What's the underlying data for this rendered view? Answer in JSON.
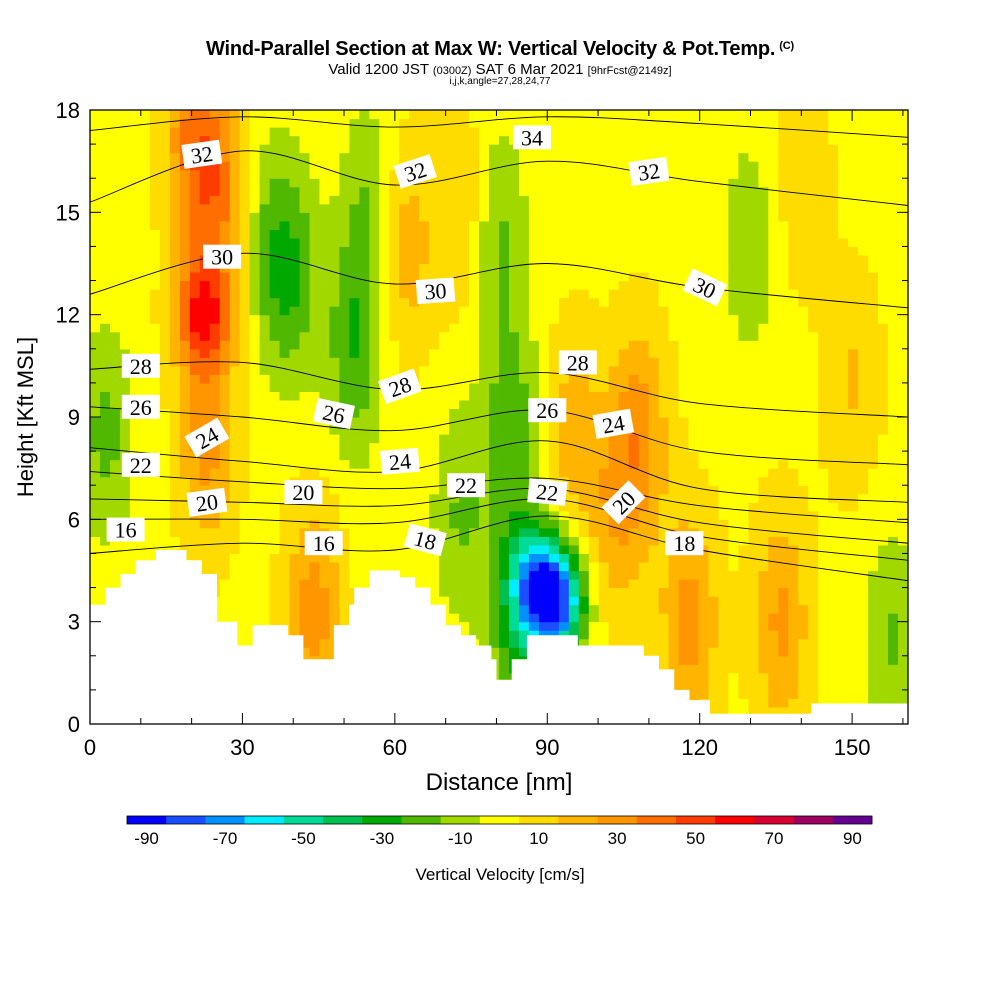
{
  "chart_data": {
    "type": "heatmap",
    "title": "Wind-Parallel Section at Max W: Vertical Velocity & Pot.Temp.",
    "title_mark": "(C)",
    "subtitle": {
      "valid": "Valid 1200 JST",
      "utc": "(0300Z)",
      "date": "SAT 6 Mar 2021",
      "forecast": "[9hrFcst@2149z]"
    },
    "info_line": "i,j,k,angle=27,28,24,77",
    "xlabel": "Distance [nm]",
    "ylabel": "Height [Kft MSL]",
    "xlim": [
      0,
      161
    ],
    "ylim": [
      0,
      18
    ],
    "x_ticks": [
      "0",
      "30",
      "60",
      "90",
      "120",
      "150"
    ],
    "y_ticks": [
      "0",
      "3",
      "6",
      "9",
      "12",
      "15",
      "18"
    ],
    "grid": false,
    "colorbar": {
      "label": "Vertical Velocity [cm/s]",
      "tick_labels": [
        "-90",
        "-70",
        "-50",
        "-30",
        "-10",
        "10",
        "30",
        "50",
        "70",
        "90"
      ],
      "colors": [
        "#0000ff",
        "#1a4fff",
        "#0090ff",
        "#00ecff",
        "#00dc98",
        "#00c050",
        "#00a800",
        "#50b800",
        "#a0d800",
        "#ffff00",
        "#ffdc00",
        "#ffb400",
        "#ff9600",
        "#ff6e00",
        "#ff3c00",
        "#ff0000",
        "#d80030",
        "#a00060",
        "#640090"
      ]
    },
    "terrain_kft": [
      [
        0,
        3.5
      ],
      [
        3,
        3.5
      ],
      [
        3,
        4.0
      ],
      [
        6,
        4.0
      ],
      [
        6,
        4.4
      ],
      [
        9,
        4.4
      ],
      [
        9,
        4.8
      ],
      [
        13,
        4.8
      ],
      [
        13,
        5.1
      ],
      [
        19,
        5.1
      ],
      [
        19,
        4.8
      ],
      [
        22,
        4.8
      ],
      [
        22,
        4.4
      ],
      [
        25,
        4.4
      ],
      [
        25,
        3.0
      ],
      [
        29,
        3.0
      ],
      [
        29,
        2.3
      ],
      [
        32,
        2.3
      ],
      [
        32,
        2.9
      ],
      [
        39,
        2.9
      ],
      [
        39,
        2.6
      ],
      [
        42,
        2.6
      ],
      [
        42,
        1.9
      ],
      [
        48,
        1.9
      ],
      [
        48,
        2.9
      ],
      [
        51,
        2.9
      ],
      [
        51,
        3.5
      ],
      [
        52,
        3.5
      ],
      [
        52,
        4.0
      ],
      [
        55,
        4.0
      ],
      [
        55,
        4.5
      ],
      [
        61,
        4.5
      ],
      [
        61,
        4.3
      ],
      [
        64,
        4.3
      ],
      [
        64,
        4.0
      ],
      [
        67,
        4.0
      ],
      [
        67,
        3.5
      ],
      [
        70,
        3.5
      ],
      [
        70,
        2.9
      ],
      [
        73,
        2.9
      ],
      [
        73,
        2.6
      ],
      [
        76,
        2.6
      ],
      [
        76,
        2.3
      ],
      [
        79,
        2.3
      ],
      [
        79,
        1.9
      ],
      [
        80,
        1.9
      ],
      [
        80,
        1.3
      ],
      [
        83,
        1.3
      ],
      [
        83,
        1.9
      ],
      [
        86,
        1.9
      ],
      [
        86,
        2.6
      ],
      [
        96,
        2.6
      ],
      [
        96,
        2.3
      ],
      [
        109,
        2.3
      ],
      [
        109,
        2.0
      ],
      [
        112,
        2.0
      ],
      [
        112,
        1.6
      ],
      [
        115,
        1.6
      ],
      [
        115,
        1.0
      ],
      [
        118,
        1.0
      ],
      [
        118,
        0.7
      ],
      [
        122,
        0.7
      ],
      [
        122,
        0.3
      ],
      [
        142,
        0.3
      ],
      [
        142,
        0.6
      ],
      [
        161,
        0.6
      ]
    ],
    "velocity_features": [
      {
        "x": 92,
        "z": 3.6,
        "w": -75
      },
      {
        "x": 88,
        "z": 4.2,
        "w": -45
      },
      {
        "x": 84,
        "z": 3.0,
        "w": -30
      },
      {
        "x": 22,
        "z": 12.0,
        "w": 45
      },
      {
        "x": 25,
        "z": 15.5,
        "w": 32
      },
      {
        "x": 23,
        "z": 8.5,
        "w": 28
      },
      {
        "x": 20,
        "z": 17.3,
        "w": 30
      },
      {
        "x": 108,
        "z": 8.5,
        "w": 28
      },
      {
        "x": 118,
        "z": 3.0,
        "w": 28
      },
      {
        "x": 44,
        "z": 3.3,
        "w": 28
      },
      {
        "x": 136,
        "z": 3.0,
        "w": 25
      },
      {
        "x": 62,
        "z": 14.0,
        "w": 20
      },
      {
        "x": 95,
        "z": 8.5,
        "w": 18
      },
      {
        "x": 103,
        "z": 6.0,
        "w": 18
      },
      {
        "x": 74,
        "z": 15.0,
        "w": 15
      },
      {
        "x": 40,
        "z": 13.0,
        "w": -20
      },
      {
        "x": 52,
        "z": 11.0,
        "w": -25
      },
      {
        "x": 55,
        "z": 15.0,
        "w": -18
      },
      {
        "x": 80,
        "z": 14.5,
        "w": -20
      },
      {
        "x": 83,
        "z": 9.0,
        "w": -22
      },
      {
        "x": 73,
        "z": 6.2,
        "w": -18
      },
      {
        "x": 36,
        "z": 14.0,
        "w": -18
      },
      {
        "x": 3,
        "z": 8.5,
        "w": -20
      },
      {
        "x": 130,
        "z": 14.0,
        "w": -15
      },
      {
        "x": 158,
        "z": 2.5,
        "w": -18
      },
      {
        "x": 150,
        "z": 10.0,
        "w": 14
      },
      {
        "x": 140,
        "z": 16.0,
        "w": 12
      }
    ],
    "isentropes": [
      {
        "theta": 16,
        "points": [
          [
            0,
            5.0
          ],
          [
            30,
            5.3
          ],
          [
            60,
            5.1
          ],
          [
            90,
            6.1
          ],
          [
            120,
            5.1
          ],
          [
            161,
            4.2
          ]
        ]
      },
      {
        "theta": 18,
        "points": [
          [
            0,
            6.0
          ],
          [
            30,
            6.0
          ],
          [
            60,
            5.9
          ],
          [
            90,
            6.6
          ],
          [
            120,
            5.5
          ],
          [
            161,
            4.8
          ]
        ]
      },
      {
        "theta": 20,
        "points": [
          [
            0,
            6.6
          ],
          [
            30,
            6.5
          ],
          [
            60,
            6.4
          ],
          [
            90,
            6.9
          ],
          [
            120,
            5.9
          ],
          [
            161,
            5.3
          ]
        ]
      },
      {
        "theta": 22,
        "points": [
          [
            0,
            7.4
          ],
          [
            30,
            7.1
          ],
          [
            60,
            6.9
          ],
          [
            90,
            7.2
          ],
          [
            120,
            6.4
          ],
          [
            161,
            5.9
          ]
        ]
      },
      {
        "theta": 24,
        "points": [
          [
            0,
            8.1
          ],
          [
            30,
            7.7
          ],
          [
            60,
            7.4
          ],
          [
            90,
            8.3
          ],
          [
            120,
            6.9
          ],
          [
            161,
            6.5
          ]
        ]
      },
      {
        "theta": 26,
        "points": [
          [
            0,
            9.3
          ],
          [
            30,
            9.0
          ],
          [
            60,
            8.6
          ],
          [
            90,
            9.2
          ],
          [
            120,
            8.0
          ],
          [
            161,
            7.6
          ]
        ]
      },
      {
        "theta": 28,
        "points": [
          [
            0,
            10.4
          ],
          [
            30,
            10.6
          ],
          [
            60,
            9.8
          ],
          [
            90,
            10.3
          ],
          [
            120,
            9.4
          ],
          [
            161,
            9.0
          ]
        ]
      },
      {
        "theta": 30,
        "points": [
          [
            0,
            12.6
          ],
          [
            30,
            13.8
          ],
          [
            60,
            12.9
          ],
          [
            90,
            13.5
          ],
          [
            120,
            12.8
          ],
          [
            161,
            12.2
          ]
        ]
      },
      {
        "theta": 32,
        "points": [
          [
            0,
            15.3
          ],
          [
            30,
            16.8
          ],
          [
            60,
            15.8
          ],
          [
            90,
            16.5
          ],
          [
            120,
            15.9
          ],
          [
            161,
            15.2
          ]
        ]
      },
      {
        "theta": 34,
        "points": [
          [
            0,
            17.4
          ],
          [
            30,
            17.8
          ],
          [
            60,
            17.5
          ],
          [
            90,
            17.8
          ],
          [
            120,
            17.6
          ],
          [
            161,
            17.2
          ]
        ]
      }
    ],
    "contour_labels": [
      {
        "text": "32",
        "x": 22,
        "z": 16.7,
        "angle": -8
      },
      {
        "text": "30",
        "x": 26,
        "z": 13.7,
        "angle": 0
      },
      {
        "text": "28",
        "x": 10,
        "z": 10.5,
        "angle": 0
      },
      {
        "text": "26",
        "x": 10,
        "z": 9.3,
        "angle": 0
      },
      {
        "text": "24",
        "x": 23,
        "z": 8.4,
        "angle": -30
      },
      {
        "text": "22",
        "x": 10,
        "z": 7.6,
        "angle": 0
      },
      {
        "text": "20",
        "x": 23,
        "z": 6.5,
        "angle": -8
      },
      {
        "text": "16",
        "x": 7,
        "z": 5.7,
        "angle": 0
      },
      {
        "text": "20",
        "x": 42,
        "z": 6.8,
        "angle": 0
      },
      {
        "text": "16",
        "x": 46,
        "z": 5.3,
        "angle": 0
      },
      {
        "text": "26",
        "x": 48,
        "z": 9.1,
        "angle": 12
      },
      {
        "text": "24",
        "x": 61,
        "z": 7.7,
        "angle": -5
      },
      {
        "text": "28",
        "x": 61,
        "z": 9.9,
        "angle": -20
      },
      {
        "text": "30",
        "x": 68,
        "z": 12.7,
        "angle": -4
      },
      {
        "text": "32",
        "x": 64,
        "z": 16.2,
        "angle": -18
      },
      {
        "text": "34",
        "x": 87,
        "z": 17.2,
        "angle": 0
      },
      {
        "text": "18",
        "x": 66,
        "z": 5.4,
        "angle": 15
      },
      {
        "text": "22",
        "x": 74,
        "z": 7.0,
        "angle": 0
      },
      {
        "text": "22",
        "x": 90,
        "z": 6.8,
        "angle": 6
      },
      {
        "text": "26",
        "x": 90,
        "z": 9.2,
        "angle": 0
      },
      {
        "text": "28",
        "x": 96,
        "z": 10.6,
        "angle": 0
      },
      {
        "text": "24",
        "x": 103,
        "z": 8.8,
        "angle": -10
      },
      {
        "text": "20",
        "x": 105,
        "z": 6.5,
        "angle": -45
      },
      {
        "text": "18",
        "x": 117,
        "z": 5.3,
        "angle": 0
      },
      {
        "text": "32",
        "x": 110,
        "z": 16.2,
        "angle": -8
      },
      {
        "text": "30",
        "x": 121,
        "z": 12.8,
        "angle": 25
      }
    ]
  }
}
